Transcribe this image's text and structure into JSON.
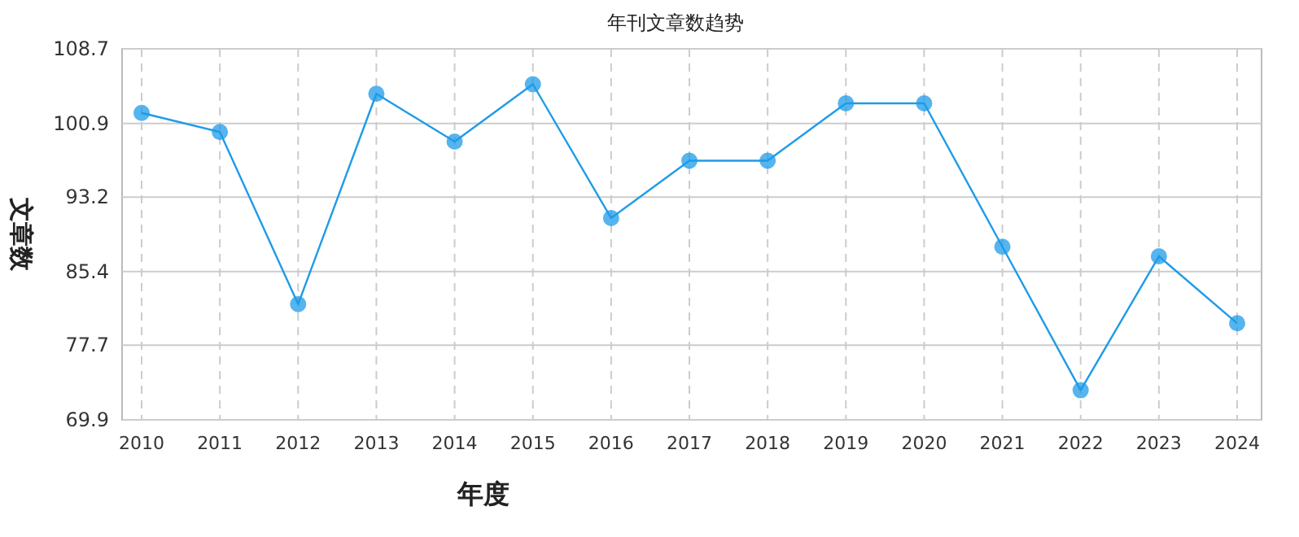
{
  "chart_data": {
    "type": "line",
    "title": "年刊文章数趋势",
    "xlabel": "年度",
    "ylabel": "文章数",
    "categories": [
      "2010",
      "2011",
      "2012",
      "2013",
      "2014",
      "2015",
      "2016",
      "2017",
      "2018",
      "2019",
      "2020",
      "2021",
      "2022",
      "2023",
      "2024"
    ],
    "series": [
      {
        "color": "#1e9be8",
        "values": [
          102,
          100,
          82,
          104,
          99,
          105,
          91,
          97,
          97,
          103,
          103,
          88,
          73,
          87,
          80
        ]
      }
    ],
    "ylim": [
      69.9,
      108.7
    ],
    "yticks": [
      69.9,
      77.7,
      85.4,
      93.2,
      100.9,
      108.7
    ],
    "grid": true,
    "marker": "circle",
    "line_style": "solid"
  }
}
